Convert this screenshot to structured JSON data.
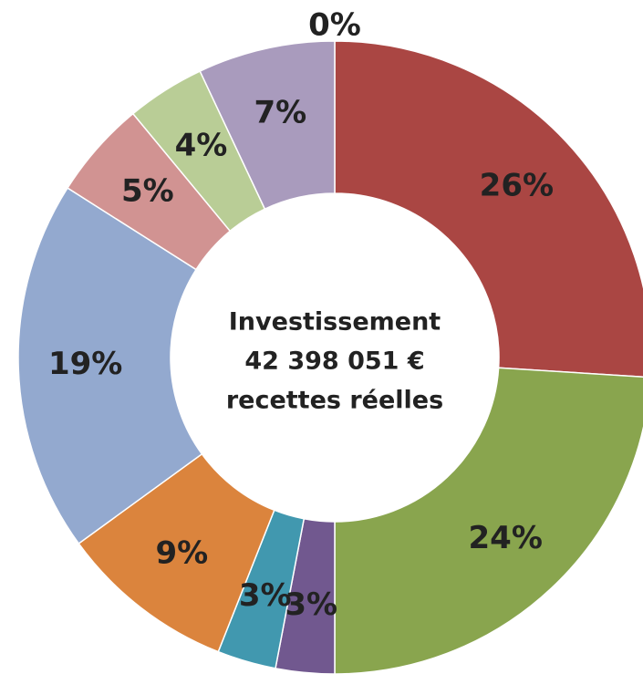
{
  "chart_data": {
    "type": "donut",
    "center_text": [
      "Investissement",
      "42 398 051 €",
      "recettes réelles"
    ],
    "values": [
      0,
      26,
      24,
      3,
      3,
      9,
      19,
      5,
      4,
      7
    ],
    "value_labels": [
      "0%",
      "26%",
      "24%",
      "3%",
      "3%",
      "9%",
      "19%",
      "5%",
      "4%",
      "7%"
    ],
    "colors": [
      "#4a6fa5",
      "#aa4643",
      "#89a54e",
      "#71588f",
      "#4198af",
      "#db843d",
      "#93a9cf",
      "#d19392",
      "#b9cd96",
      "#a99bbd"
    ]
  }
}
